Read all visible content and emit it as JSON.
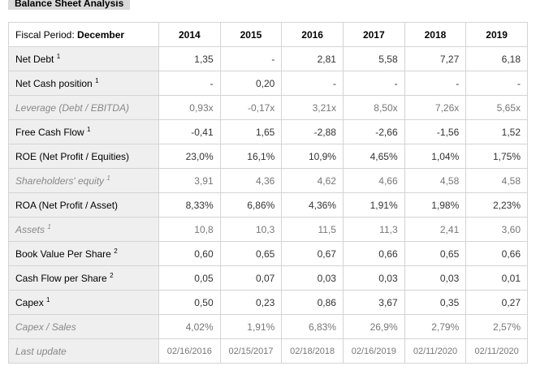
{
  "title": "Balance Sheet Analysis",
  "table": {
    "header_label": "Fiscal Period:",
    "header_value": "December",
    "columns": [
      "2014",
      "2015",
      "2016",
      "2017",
      "2018",
      "2019"
    ],
    "rows": [
      {
        "label": "Net Debt",
        "note": "1",
        "muted": false,
        "values": [
          "1,35",
          "-",
          "2,81",
          "5,58",
          "7,27",
          "6,18"
        ]
      },
      {
        "label": "Net Cash position",
        "note": "1",
        "muted": false,
        "values": [
          "-",
          "0,20",
          "-",
          "-",
          "-",
          "-"
        ]
      },
      {
        "label": "Leverage (Debt / EBITDA)",
        "muted": true,
        "values": [
          "0,93x",
          "-0,17x",
          "3,21x",
          "8,50x",
          "7,26x",
          "5,65x"
        ]
      },
      {
        "label": "Free Cash Flow",
        "note": "1",
        "muted": false,
        "values": [
          "-0,41",
          "1,65",
          "-2,88",
          "-2,66",
          "-1,56",
          "1,52"
        ]
      },
      {
        "label": "ROE (Net Profit / Equities)",
        "muted": false,
        "values": [
          "23,0%",
          "16,1%",
          "10,9%",
          "4,65%",
          "1,04%",
          "1,75%"
        ]
      },
      {
        "label": "Shareholders' equity",
        "note": "1",
        "muted": true,
        "values": [
          "3,91",
          "4,36",
          "4,62",
          "4,66",
          "4,58",
          "4,58"
        ]
      },
      {
        "label": "ROA (Net Profit / Asset)",
        "muted": false,
        "values": [
          "8,33%",
          "6,86%",
          "4,36%",
          "1,91%",
          "1,98%",
          "2,23%"
        ]
      },
      {
        "label": "Assets",
        "note": "1",
        "muted": true,
        "values": [
          "10,8",
          "10,3",
          "11,5",
          "11,3",
          "2,41",
          "3,60"
        ]
      },
      {
        "label": "Book Value Per Share",
        "note": "2",
        "muted": false,
        "values": [
          "0,60",
          "0,65",
          "0,67",
          "0,66",
          "0,65",
          "0,66"
        ]
      },
      {
        "label": "Cash Flow per Share",
        "note": "2",
        "muted": false,
        "values": [
          "0,05",
          "0,07",
          "0,03",
          "0,03",
          "0,03",
          "0,01"
        ]
      },
      {
        "label": "Capex",
        "note": "1",
        "muted": false,
        "values": [
          "0,50",
          "0,23",
          "0,86",
          "3,67",
          "0,35",
          "0,27"
        ]
      },
      {
        "label": "Capex / Sales",
        "muted": true,
        "values": [
          "4,02%",
          "1,91%",
          "6,83%",
          "26,9%",
          "2,79%",
          "2,57%"
        ]
      },
      {
        "label": "Last update",
        "muted": true,
        "values": [
          "02/16/2016",
          "02/15/2017",
          "02/18/2018",
          "02/16/2019",
          "02/11/2020",
          "02/11/2020"
        ]
      }
    ]
  }
}
